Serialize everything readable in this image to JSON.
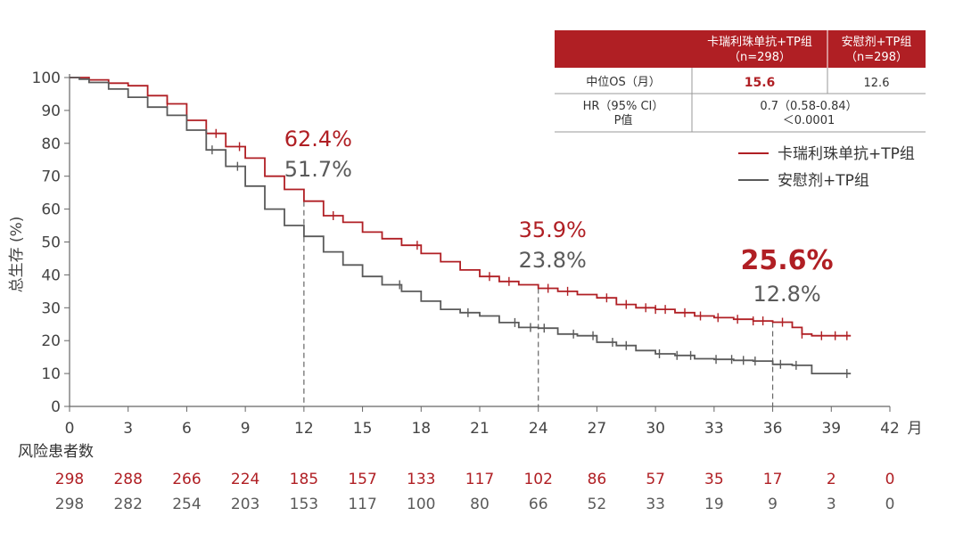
{
  "chart_data": {
    "type": "line",
    "subtype": "kaplan-meier survival curve",
    "ylabel": "总生存 (%)",
    "x_unit": "月",
    "xlim": [
      0,
      42
    ],
    "ylim": [
      0,
      100
    ],
    "x_ticks": [
      0,
      3,
      6,
      9,
      12,
      15,
      18,
      21,
      24,
      27,
      30,
      33,
      36,
      39,
      42
    ],
    "y_ticks": [
      0,
      10,
      20,
      30,
      40,
      50,
      60,
      70,
      80,
      90,
      100
    ],
    "grid": false,
    "legend_position": "right",
    "colors": {
      "treatment": "#b01f24",
      "control": "#5a5a5a",
      "table_header": "#b01f24"
    },
    "series": [
      {
        "name": "卡瑞利珠单抗+TP组",
        "color": "#b01f24",
        "points": [
          [
            0,
            100
          ],
          [
            0.5,
            100
          ],
          [
            1,
            99.3
          ],
          [
            2,
            98.3
          ],
          [
            3,
            97.5
          ],
          [
            4,
            94.5
          ],
          [
            5,
            92
          ],
          [
            6,
            87
          ],
          [
            7,
            83
          ],
          [
            8,
            79
          ],
          [
            9,
            75.5
          ],
          [
            10,
            70
          ],
          [
            11,
            66
          ],
          [
            12,
            62.4
          ],
          [
            13,
            58
          ],
          [
            14,
            56
          ],
          [
            15,
            53
          ],
          [
            16,
            51
          ],
          [
            17,
            49
          ],
          [
            18,
            46.5
          ],
          [
            19,
            44
          ],
          [
            20,
            41.5
          ],
          [
            21,
            39.5
          ],
          [
            22,
            38
          ],
          [
            23,
            37
          ],
          [
            24,
            35.9
          ],
          [
            25,
            35
          ],
          [
            26,
            34
          ],
          [
            27,
            33
          ],
          [
            28,
            31
          ],
          [
            29,
            30
          ],
          [
            30,
            29.5
          ],
          [
            31,
            28.5
          ],
          [
            32,
            27.5
          ],
          [
            33,
            27
          ],
          [
            34,
            26.5
          ],
          [
            35,
            26
          ],
          [
            36,
            25.6
          ],
          [
            37,
            24
          ],
          [
            37.5,
            22
          ],
          [
            38,
            21.5
          ],
          [
            40,
            21.5
          ]
        ],
        "censor_x": [
          5,
          7.5,
          8.7,
          13.5,
          17.8,
          21.5,
          22.5,
          24.5,
          25.5,
          27.5,
          28.5,
          29.5,
          30,
          30.5,
          31.5,
          32.3,
          33.2,
          34.2,
          35,
          35.5,
          36.5,
          37.5,
          38.5,
          39.2,
          39.8
        ]
      },
      {
        "name": "安慰剂+TP组",
        "color": "#5a5a5a",
        "points": [
          [
            0,
            100
          ],
          [
            0.5,
            99.5
          ],
          [
            1,
            98.5
          ],
          [
            2,
            96.5
          ],
          [
            3,
            94
          ],
          [
            4,
            91
          ],
          [
            5,
            88.5
          ],
          [
            6,
            84
          ],
          [
            7,
            78
          ],
          [
            8,
            73
          ],
          [
            9,
            67
          ],
          [
            10,
            60
          ],
          [
            11,
            55
          ],
          [
            12,
            51.7
          ],
          [
            13,
            47
          ],
          [
            14,
            43
          ],
          [
            15,
            39.5
          ],
          [
            16,
            37
          ],
          [
            17,
            35
          ],
          [
            18,
            32
          ],
          [
            19,
            29.5
          ],
          [
            20,
            28.5
          ],
          [
            21,
            27.5
          ],
          [
            22,
            25.5
          ],
          [
            23,
            24
          ],
          [
            24,
            23.8
          ],
          [
            25,
            22
          ],
          [
            26,
            21.5
          ],
          [
            27,
            19.5
          ],
          [
            28,
            18.5
          ],
          [
            29,
            17
          ],
          [
            30,
            16
          ],
          [
            31,
            15.5
          ],
          [
            32,
            14.5
          ],
          [
            33,
            14.3
          ],
          [
            34,
            14
          ],
          [
            35,
            13.8
          ],
          [
            36,
            12.8
          ],
          [
            37,
            12.5
          ],
          [
            38,
            10
          ],
          [
            40,
            10
          ]
        ],
        "censor_x": [
          7.3,
          8.6,
          16.9,
          20.4,
          22.8,
          23.6,
          24.3,
          25.8,
          26.8,
          27.8,
          28.5,
          30.2,
          31.1,
          31.8,
          33.1,
          33.9,
          34.5,
          35.1,
          36.4,
          37.2,
          39.8
        ]
      }
    ],
    "reference_lines_x": [
      12,
      24,
      36
    ],
    "annotations": [
      {
        "x": 12,
        "treatment": "62.4%",
        "control": "51.7%",
        "bold": false
      },
      {
        "x": 24,
        "treatment": "35.9%",
        "control": "23.8%",
        "bold": false
      },
      {
        "x": 36,
        "treatment": "25.6%",
        "control": "12.8%",
        "bold": true
      }
    ],
    "summary_table": {
      "header": [
        "",
        "卡瑞利珠单抗+TP组\n（n=298）",
        "安慰剂+TP组\n（n=298）"
      ],
      "rows": [
        {
          "label": "中位OS（月）",
          "treatment": "15.6",
          "control": "12.6"
        },
        {
          "label": "HR（95% CI）\nP值",
          "merged": "0.7（0.58-0.84）\n＜0.0001"
        }
      ]
    },
    "risk_table": {
      "title": "风险患者数",
      "treatment": [
        298,
        288,
        266,
        224,
        185,
        157,
        133,
        117,
        102,
        86,
        57,
        35,
        17,
        2,
        0
      ],
      "control": [
        298,
        282,
        254,
        203,
        153,
        117,
        100,
        80,
        66,
        52,
        33,
        19,
        9,
        3,
        0
      ]
    }
  }
}
